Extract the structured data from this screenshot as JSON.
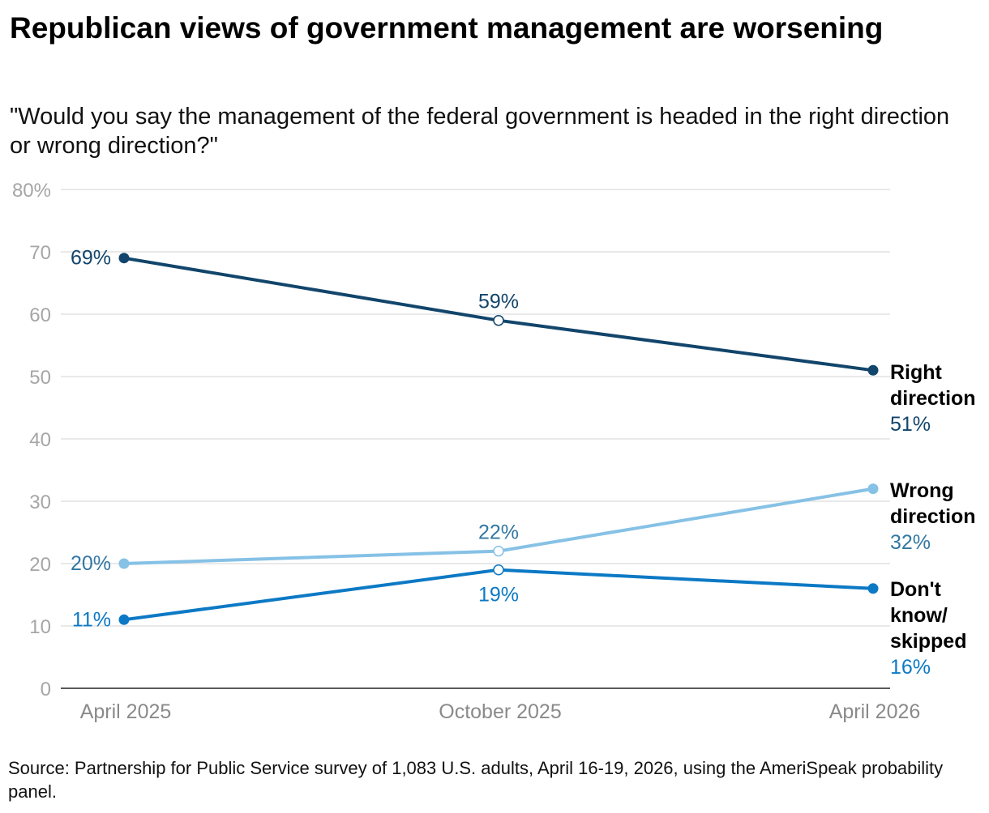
{
  "title": "Republican views of government management are worsening",
  "subtitle": "\"Would you say the management of the federal government is headed in the right direction or wrong direction?\"",
  "source": "Source: Partnership for Public Service survey of 1,083 U.S. adults, April 16-19, 2026, using the AmeriSpeak probability panel.",
  "chart_data": {
    "type": "line",
    "categories": [
      "April 2025",
      "October 2025",
      "April 2026"
    ],
    "ylim": [
      0,
      80
    ],
    "yticks": [
      0,
      10,
      20,
      30,
      40,
      50,
      60,
      70,
      80
    ],
    "ytick_labels": [
      "0",
      "10",
      "20",
      "30",
      "40",
      "50",
      "60",
      "70",
      "80%"
    ],
    "grid": true,
    "legend": "direct labels at right end of each line",
    "series": [
      {
        "name": "Right direction",
        "color": "#12456b",
        "values": [
          69,
          59,
          51
        ],
        "value_labels": [
          "69%",
          "59%",
          "51%"
        ],
        "marker_hollow": [
          false,
          true,
          false
        ]
      },
      {
        "name": "Wrong direction",
        "color": "#86c1e6",
        "label_color": "#3277a2",
        "values": [
          20,
          22,
          32
        ],
        "value_labels": [
          "20%",
          "22%",
          "32%"
        ],
        "marker_hollow": [
          false,
          true,
          false
        ]
      },
      {
        "name": "Don't know/ skipped",
        "color": "#0c79c5",
        "values": [
          11,
          19,
          16
        ],
        "value_labels": [
          "11%",
          "19%",
          "16%"
        ],
        "marker_hollow": [
          false,
          true,
          false
        ]
      }
    ]
  }
}
